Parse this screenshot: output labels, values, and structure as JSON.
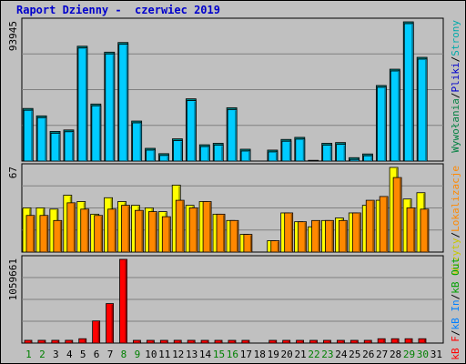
{
  "title": "Raport Dzienny -  czerwiec 2019",
  "days": [
    "1",
    "2",
    "3",
    "4",
    "5",
    "6",
    "7",
    "8",
    "9",
    "10",
    "11",
    "12",
    "13",
    "14",
    "15",
    "16",
    "17",
    "18",
    "19",
    "20",
    "21",
    "22",
    "23",
    "24",
    "25",
    "26",
    "27",
    "28",
    "29",
    "30",
    "31"
  ],
  "weekend_days": [
    "1",
    "2",
    "8",
    "9",
    "15",
    "16",
    "22",
    "23",
    "29",
    "30"
  ],
  "colors": {
    "background": "#c0c0c0",
    "title": "#0000cc",
    "hits": "#00ccff",
    "files": "#00cccc",
    "pages": "#008080",
    "visits": "#ffff00",
    "sites": "#ff8800",
    "kb_f": "#ff0000",
    "kb_in": "#0080ff",
    "kb_out": "#00a000",
    "weekday_label": "#000000",
    "weekend_label": "#008000"
  },
  "panels": {
    "top": {
      "max_label": "93945",
      "legend": [
        {
          "text": "Wywołania",
          "color": "#008040"
        },
        {
          "text": "/",
          "color": "#000000"
        },
        {
          "text": "Pliki",
          "color": "#0000cc"
        },
        {
          "text": "/",
          "color": "#000000"
        },
        {
          "text": "Strony",
          "color": "#00aaaa"
        }
      ]
    },
    "middle": {
      "max_label": "67",
      "legend": [
        {
          "text": "Wizyty",
          "color": "#c8c800"
        },
        {
          "text": "/",
          "color": "#000000"
        },
        {
          "text": "Lokalizacje",
          "color": "#ff8800"
        }
      ]
    },
    "bottom": {
      "max_label": "1059661",
      "legend": [
        {
          "text": "kB F",
          "color": "#ff0000"
        },
        {
          "text": "/",
          "color": "#000000"
        },
        {
          "text": "kB In",
          "color": "#0080ff"
        },
        {
          "text": "/",
          "color": "#000000"
        },
        {
          "text": "kB Out",
          "color": "#00a000"
        }
      ]
    }
  },
  "chart_data": {
    "type": "bar",
    "categories": [
      "1",
      "2",
      "3",
      "4",
      "5",
      "6",
      "7",
      "8",
      "9",
      "10",
      "11",
      "12",
      "13",
      "14",
      "15",
      "16",
      "17",
      "18",
      "19",
      "20",
      "21",
      "22",
      "23",
      "24",
      "25",
      "26",
      "27",
      "28",
      "29",
      "30",
      "31"
    ],
    "panels": [
      {
        "ymax": 93945,
        "series": [
          {
            "name": "Wywołania",
            "values": [
              35500,
              30500,
              20000,
              21000,
              77500,
              38500,
              73500,
              80000,
              27000,
              8600,
              5000,
              15000,
              42000,
              11000,
              12000,
              36000,
              8000,
              0,
              7400,
              14600,
              16000,
              500,
              12000,
              12500,
              2300,
              4800,
              51000,
              62000,
              93945,
              70000,
              0
            ]
          },
          {
            "name": "Pliki",
            "values": [
              35500,
              30500,
              20000,
              21000,
              77500,
              38500,
              73500,
              80000,
              27000,
              8600,
              5000,
              15000,
              42000,
              11000,
              12000,
              36000,
              8000,
              0,
              7400,
              14600,
              16000,
              500,
              12000,
              12500,
              2300,
              4800,
              51000,
              62000,
              93945,
              70000,
              0
            ]
          },
          {
            "name": "Strony",
            "values": [
              35500,
              30500,
              20000,
              21000,
              77500,
              38500,
              73500,
              80000,
              27000,
              8600,
              5000,
              15000,
              42000,
              11000,
              12000,
              36000,
              8000,
              0,
              7400,
              14600,
              16000,
              500,
              12000,
              12500,
              2300,
              4800,
              51000,
              62000,
              93945,
              70000,
              0
            ]
          }
        ]
      },
      {
        "ymax": 67,
        "series": [
          {
            "name": "Wizyty",
            "values": [
              35,
              35,
              34,
              45,
              40,
              30,
              43,
              40,
              37,
              35,
              32,
              53,
              37,
              40,
              30,
              25,
              14,
              0,
              9,
              31,
              24,
              20,
              25,
              27,
              31,
              37,
              41,
              67,
              42,
              47,
              0
            ]
          },
          {
            "name": "Lokalizacje",
            "values": [
              29,
              29,
              25,
              39,
              34,
              29,
              34,
              37,
              33,
              32,
              28,
              41,
              35,
              40,
              30,
              25,
              14,
              0,
              9,
              31,
              24,
              25,
              25,
              25,
              31,
              41,
              44,
              59,
              35,
              34,
              0
            ]
          }
        ]
      },
      {
        "ymax": 1059661,
        "series": [
          {
            "name": "kB F",
            "values": [
              35000,
              35000,
              35000,
              35000,
              55000,
              280000,
              500000,
              1059661,
              20000,
              18000,
              18000,
              35000,
              35000,
              18000,
              18000,
              18000,
              18000,
              0,
              18000,
              18000,
              18000,
              18000,
              18000,
              18000,
              18000,
              18000,
              55000,
              55000,
              55000,
              55000,
              0
            ]
          },
          {
            "name": "kB In",
            "values": [
              0,
              0,
              0,
              0,
              0,
              0,
              0,
              0,
              0,
              0,
              0,
              0,
              0,
              0,
              0,
              0,
              0,
              0,
              0,
              0,
              0,
              0,
              0,
              0,
              0,
              0,
              0,
              0,
              0,
              0,
              0
            ]
          },
          {
            "name": "kB Out",
            "values": [
              0,
              0,
              0,
              0,
              0,
              0,
              0,
              0,
              0,
              0,
              0,
              0,
              0,
              0,
              0,
              0,
              0,
              0,
              0,
              0,
              0,
              0,
              0,
              0,
              0,
              0,
              0,
              0,
              0,
              0,
              0
            ]
          }
        ]
      }
    ]
  }
}
